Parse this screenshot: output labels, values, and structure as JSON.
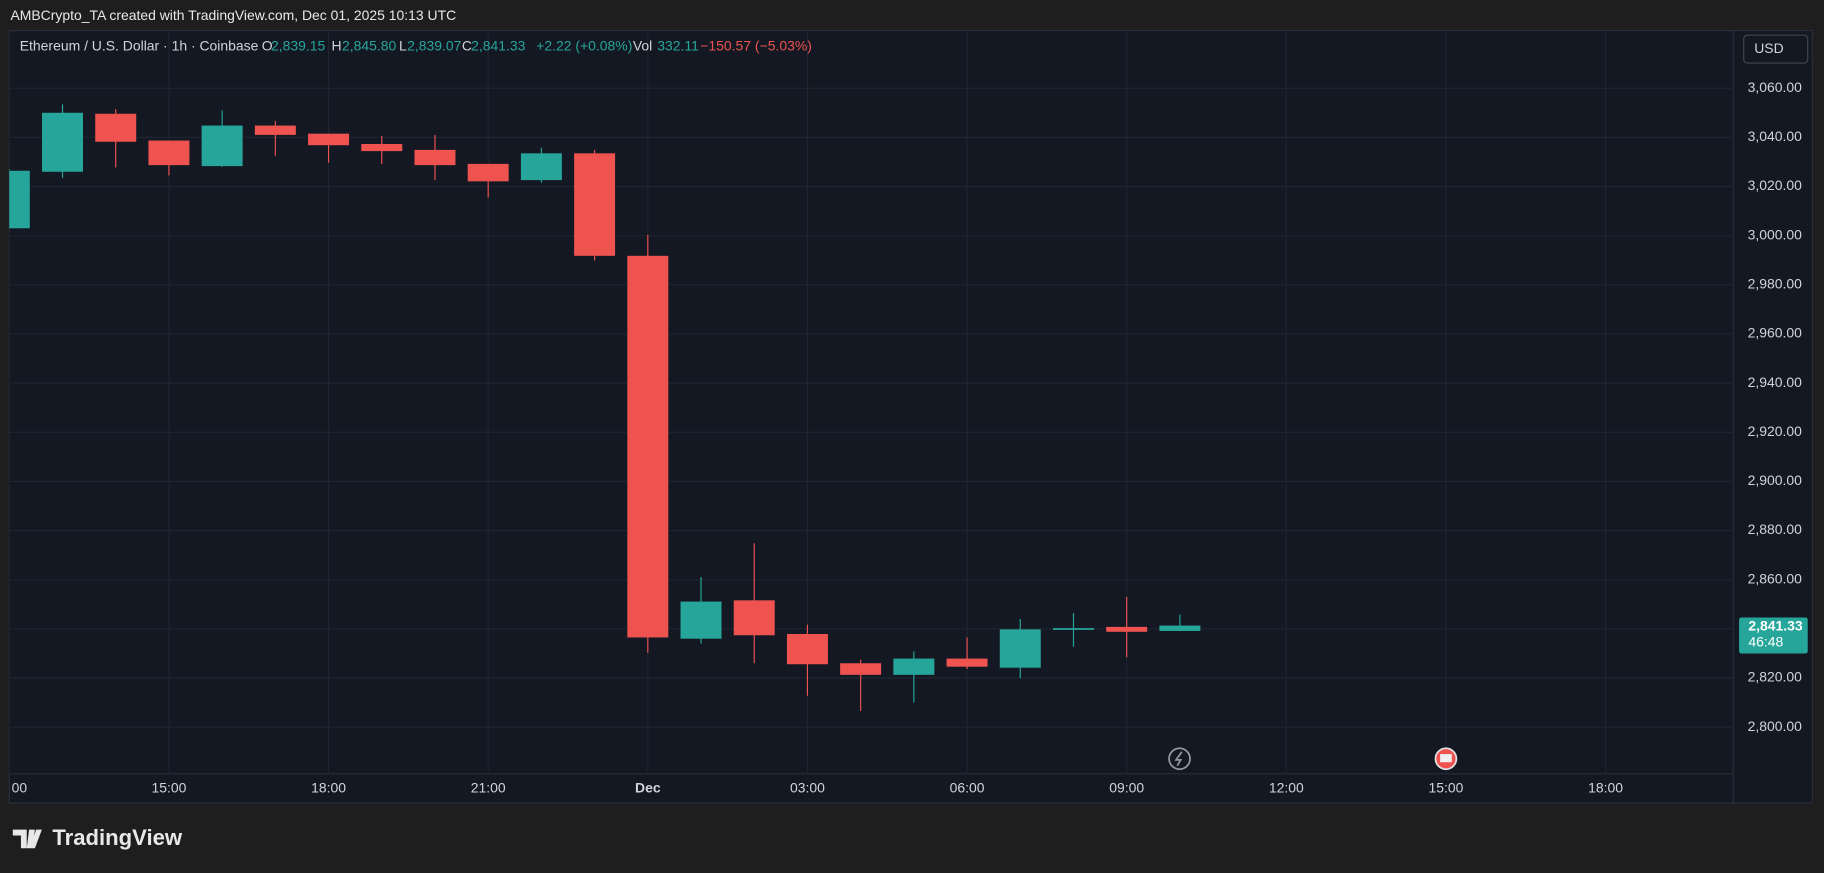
{
  "header": {
    "attribution": "AMBCrypto_TA created with TradingView.com, Dec 01, 2025 10:13 UTC",
    "symbol": "Ethereum / U.S. Dollar · 1h · Coinbase",
    "o_key": "O",
    "o_value": "2,839.15",
    "h_key": "H",
    "h_value": "2,845.80",
    "l_key": "L",
    "l_value": "2,839.07",
    "c_key": "C",
    "c_value": "2,841.33",
    "change": "+2.22 (+0.08%)",
    "vol_key": "Vol",
    "vol_value": "332.11",
    "vol_change": "−150.57 (−5.03%)",
    "currency": "USD",
    "brand": "TradingView"
  },
  "chart_data": {
    "type": "candlestick",
    "x": [
      12,
      13,
      14,
      15,
      16,
      17,
      18,
      19,
      20,
      21,
      22,
      23,
      24,
      25,
      26,
      27,
      28,
      29,
      30,
      31,
      32,
      33,
      34
    ],
    "open": [
      3003,
      3026,
      3049.6,
      3038.7,
      3028.3,
      3044.8,
      3041.5,
      3037.3,
      3034.9,
      3029.2,
      3022.6,
      3033.5,
      2991.8,
      2836,
      2851.6,
      2837.9,
      2826,
      2821.3,
      2827.9,
      2824.2,
      2839.8,
      2840.8,
      2839.15
    ],
    "high": [
      3027,
      3053.4,
      3051.5,
      3038.7,
      3051,
      3046.7,
      3041.5,
      3040.6,
      3041,
      3029.2,
      3035.8,
      3034.9,
      3000.3,
      2861.1,
      2874.8,
      2841.7,
      2827.5,
      2830.8,
      2836.5,
      2844,
      2846.4,
      2853,
      2845.8
    ],
    "low": [
      3003,
      3023.5,
      3027.8,
      3024.5,
      3028,
      3032.5,
      3029.7,
      3029.2,
      3022.6,
      3015.5,
      3021.6,
      2989.9,
      2830.3,
      2834,
      2826,
      2812.8,
      2806.6,
      2810,
      2823.7,
      2819.9,
      2832.7,
      2828.4,
      2839.07
    ],
    "close": [
      3026.4,
      3050,
      3038.2,
      3028.7,
      3044.8,
      3041,
      3036.8,
      3034.4,
      3028.7,
      3022.1,
      3033.5,
      2991.8,
      2836.5,
      2851.1,
      2837.4,
      2825.6,
      2821.3,
      2827.9,
      2824.6,
      2839.8,
      2840.3,
      2838.8,
      2841.33
    ],
    "up_color": "#26a69a",
    "down_color": "#ef5350",
    "xlim": [
      12,
      44.4
    ],
    "xticks": [
      {
        "value": 12,
        "label": "00"
      },
      {
        "value": 15,
        "label": "15:00"
      },
      {
        "value": 18,
        "label": "18:00"
      },
      {
        "value": 21,
        "label": "21:00"
      },
      {
        "value": 24,
        "label": "Dec"
      },
      {
        "value": 27,
        "label": "03:00"
      },
      {
        "value": 30,
        "label": "06:00"
      },
      {
        "value": 33,
        "label": "09:00"
      },
      {
        "value": 36,
        "label": "12:00"
      },
      {
        "value": 39,
        "label": "15:00"
      },
      {
        "value": 42,
        "label": "18:00"
      }
    ],
    "ylim": [
      2781,
      3083
    ],
    "yticks": [
      {
        "value": 2800,
        "label": "2,800.00"
      },
      {
        "value": 2820,
        "label": "2,820.00"
      },
      {
        "value": 2840,
        "label": "2,840.00"
      },
      {
        "value": 2860,
        "label": "2,860.00"
      },
      {
        "value": 2880,
        "label": "2,880.00"
      },
      {
        "value": 2900,
        "label": "2,900.00"
      },
      {
        "value": 2920,
        "label": "2,920.00"
      },
      {
        "value": 2940,
        "label": "2,940.00"
      },
      {
        "value": 2960,
        "label": "2,960.00"
      },
      {
        "value": 2980,
        "label": "2,980.00"
      },
      {
        "value": 3000,
        "label": "3,000.00"
      },
      {
        "value": 3020,
        "label": "3,020.00"
      },
      {
        "value": 3040,
        "label": "3,040.00"
      },
      {
        "value": 3060,
        "label": "3,060.00"
      }
    ],
    "grid": true,
    "last_price_label": "2,841.33",
    "countdown": "46:48"
  }
}
